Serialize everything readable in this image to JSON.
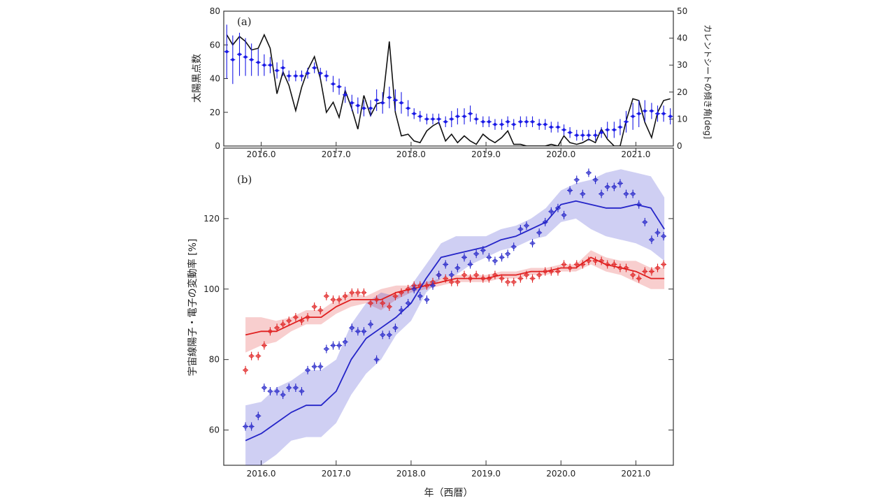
{
  "chart_data": [
    {
      "type": "line",
      "panel_label": "(a)",
      "xlabel": "",
      "ylabel": "太陽黒点数",
      "y2label": "カレントシートの傾き角[deg]",
      "xlim": [
        2015.5,
        2021.5
      ],
      "ylim": [
        0,
        80
      ],
      "y2lim": [
        0,
        50
      ],
      "xticks": [
        "2016.0",
        "2017.0",
        "2018.0",
        "2019.0",
        "2020.0",
        "2021.0"
      ],
      "yticks": [
        "0",
        "20",
        "40",
        "60",
        "80"
      ],
      "y2ticks": [
        "0",
        "10",
        "20",
        "30",
        "40",
        "50"
      ],
      "grid": false,
      "series": [
        {
          "color": "#111111",
          "axis": "left",
          "x": [
            2015.54,
            2015.62,
            2015.71,
            2015.79,
            2015.87,
            2015.96,
            2016.04,
            2016.12,
            2016.21,
            2016.29,
            2016.37,
            2016.46,
            2016.54,
            2016.62,
            2016.71,
            2016.79,
            2016.87,
            2016.96,
            2017.04,
            2017.12,
            2017.21,
            2017.29,
            2017.37,
            2017.46,
            2017.54,
            2017.62,
            2017.71,
            2017.79,
            2017.87,
            2017.96,
            2018.04,
            2018.12,
            2018.21,
            2018.29,
            2018.37,
            2018.46,
            2018.54,
            2018.62,
            2018.71,
            2018.79,
            2018.87,
            2018.96,
            2019.04,
            2019.12,
            2019.21,
            2019.29,
            2019.37,
            2019.46,
            2019.54,
            2019.62,
            2019.71,
            2019.79,
            2019.87,
            2019.96,
            2020.04,
            2020.12,
            2020.21,
            2020.29,
            2020.37,
            2020.46,
            2020.54,
            2020.62,
            2020.71,
            2020.79,
            2020.87,
            2020.96,
            2021.04,
            2021.12,
            2021.21,
            2021.29,
            2021.37,
            2021.46
          ],
          "values": [
            66,
            60,
            65,
            62,
            57,
            58,
            66,
            58,
            31,
            44,
            36,
            21,
            35,
            45,
            53,
            40,
            20,
            26,
            17,
            33,
            22,
            10,
            30,
            18,
            25,
            26,
            62,
            20,
            6,
            7,
            3,
            2,
            9,
            12,
            14,
            3,
            7,
            2,
            6,
            3,
            1,
            7,
            4,
            2,
            5,
            9,
            1,
            1,
            0,
            0,
            0,
            0,
            1,
            0,
            6,
            2,
            1,
            2,
            4,
            2,
            10,
            4,
            0,
            0,
            15,
            28,
            27,
            14,
            5,
            20,
            27,
            28
          ]
        },
        {
          "color": "#1a1ae6",
          "axis": "right",
          "x": [
            2015.54,
            2015.62,
            2015.71,
            2015.79,
            2015.87,
            2015.96,
            2016.04,
            2016.12,
            2016.21,
            2016.29,
            2016.37,
            2016.46,
            2016.54,
            2016.62,
            2016.71,
            2016.79,
            2016.87,
            2016.96,
            2017.04,
            2017.12,
            2017.21,
            2017.29,
            2017.37,
            2017.46,
            2017.54,
            2017.62,
            2017.71,
            2017.79,
            2017.87,
            2017.96,
            2018.04,
            2018.12,
            2018.21,
            2018.29,
            2018.37,
            2018.46,
            2018.54,
            2018.62,
            2018.71,
            2018.79,
            2018.87,
            2018.96,
            2019.04,
            2019.12,
            2019.21,
            2019.29,
            2019.37,
            2019.46,
            2019.54,
            2019.62,
            2019.71,
            2019.79,
            2019.87,
            2019.96,
            2020.04,
            2020.12,
            2020.21,
            2020.29,
            2020.37,
            2020.46,
            2020.54,
            2020.62,
            2020.71,
            2020.79,
            2020.87,
            2020.96,
            2021.04,
            2021.12,
            2021.21,
            2021.29,
            2021.37,
            2021.46
          ],
          "values": [
            35,
            32,
            34,
            33,
            32,
            31,
            30,
            30,
            28,
            29,
            26,
            26,
            26,
            27,
            29,
            27,
            26,
            23,
            22,
            19,
            16,
            15,
            14,
            14,
            17,
            16,
            18,
            17,
            16,
            14,
            12,
            11,
            10,
            10,
            10,
            9,
            10,
            11,
            11,
            12,
            10,
            9,
            9,
            8,
            8,
            9,
            8,
            9,
            9,
            9,
            8,
            8,
            7,
            7,
            6,
            5,
            4,
            4,
            4,
            4,
            5,
            6,
            6,
            7,
            9,
            11,
            12,
            13,
            13,
            12,
            12,
            11
          ],
          "yerr": [
            10,
            9,
            8,
            7,
            6,
            5,
            4,
            3,
            3,
            3,
            2,
            2,
            2,
            2,
            2,
            2,
            2,
            3,
            3,
            3,
            3,
            3,
            3,
            3,
            4,
            4,
            4,
            4,
            4,
            3,
            2,
            2,
            2,
            2,
            2,
            2,
            3,
            3,
            3,
            3,
            2,
            2,
            2,
            2,
            2,
            2,
            2,
            2,
            2,
            2,
            2,
            2,
            2,
            2,
            2,
            2,
            2,
            2,
            2,
            2,
            2,
            3,
            3,
            3,
            4,
            5,
            5,
            4,
            3,
            3,
            3,
            3
          ]
        }
      ]
    },
    {
      "type": "line",
      "panel_label": "(b)",
      "xlabel": "年（西暦）",
      "ylabel": "宇宙線陽子・電子の変動率 [%]",
      "xlim": [
        2015.5,
        2021.5
      ],
      "ylim": [
        50,
        140
      ],
      "xticks": [
        "2016.0",
        "2017.0",
        "2018.0",
        "2019.0",
        "2020.0",
        "2021.0"
      ],
      "yticks": [
        "60",
        "80",
        "100",
        "120"
      ],
      "grid": false,
      "series": [
        {
          "color": "#e02020",
          "points_x": [
            2015.79,
            2015.87,
            2015.96,
            2016.04,
            2016.12,
            2016.21,
            2016.29,
            2016.37,
            2016.46,
            2016.54,
            2016.62,
            2016.71,
            2016.79,
            2016.87,
            2016.96,
            2017.04,
            2017.12,
            2017.21,
            2017.29,
            2017.37,
            2017.46,
            2017.54,
            2017.62,
            2017.71,
            2017.79,
            2017.87,
            2017.96,
            2018.04,
            2018.12,
            2018.21,
            2018.29,
            2018.37,
            2018.46,
            2018.54,
            2018.62,
            2018.71,
            2018.79,
            2018.87,
            2018.96,
            2019.04,
            2019.12,
            2019.21,
            2019.29,
            2019.37,
            2019.46,
            2019.54,
            2019.62,
            2019.71,
            2019.79,
            2019.87,
            2019.96,
            2020.04,
            2020.12,
            2020.21,
            2020.29,
            2020.37,
            2020.46,
            2020.54,
            2020.62,
            2020.71,
            2020.79,
            2020.87,
            2020.96,
            2021.04,
            2021.12,
            2021.21,
            2021.29,
            2021.37
          ],
          "points_y": [
            77,
            81,
            81,
            84,
            88,
            89,
            90,
            91,
            92,
            91,
            92,
            95,
            94,
            98,
            97,
            97,
            98,
            99,
            99,
            99,
            96,
            97,
            96,
            95,
            98,
            99,
            100,
            101,
            101,
            101,
            102,
            104,
            103,
            102,
            102,
            104,
            103,
            104,
            103,
            103,
            104,
            103,
            102,
            102,
            103,
            104,
            103,
            104,
            105,
            105,
            105,
            107,
            106,
            107,
            107,
            108,
            108,
            108,
            107,
            107,
            106,
            106,
            104,
            103,
            105,
            105,
            106,
            107
          ],
          "fit_x": [
            2015.79,
            2016.0,
            2016.2,
            2016.4,
            2016.6,
            2016.8,
            2017.0,
            2017.2,
            2017.4,
            2017.6,
            2017.8,
            2018.0,
            2018.2,
            2018.4,
            2018.6,
            2018.8,
            2019.0,
            2019.2,
            2019.4,
            2019.6,
            2019.8,
            2020.0,
            2020.2,
            2020.4,
            2020.6,
            2020.8,
            2021.0,
            2021.2,
            2021.38
          ],
          "fit_y": [
            87,
            88,
            88,
            90,
            92,
            92,
            95,
            97,
            97,
            97,
            99,
            100,
            101,
            102,
            103,
            103,
            103,
            104,
            104,
            105,
            105,
            106,
            106,
            109,
            107,
            106,
            105,
            103,
            103
          ],
          "band_lo": [
            82,
            84,
            85,
            88,
            90,
            90,
            93,
            95,
            96,
            94,
            97,
            99,
            100,
            101,
            102,
            102,
            102,
            103,
            103,
            104,
            104,
            105,
            105,
            107,
            105,
            104,
            102,
            100,
            100
          ],
          "band_hi": [
            92,
            92,
            91,
            92,
            94,
            94,
            97,
            99,
            98,
            100,
            101,
            101,
            102,
            103,
            104,
            104,
            104,
            105,
            105,
            106,
            106,
            107,
            107,
            111,
            109,
            108,
            108,
            106,
            106
          ]
        },
        {
          "color": "#2424c8",
          "points_x": [
            2015.79,
            2015.87,
            2015.96,
            2016.04,
            2016.12,
            2016.21,
            2016.29,
            2016.37,
            2016.46,
            2016.54,
            2016.62,
            2016.71,
            2016.79,
            2016.87,
            2016.96,
            2017.04,
            2017.12,
            2017.21,
            2017.29,
            2017.37,
            2017.46,
            2017.54,
            2017.62,
            2017.71,
            2017.79,
            2017.87,
            2017.96,
            2018.04,
            2018.12,
            2018.21,
            2018.29,
            2018.37,
            2018.46,
            2018.54,
            2018.62,
            2018.71,
            2018.79,
            2018.87,
            2018.96,
            2019.04,
            2019.12,
            2019.21,
            2019.29,
            2019.37,
            2019.46,
            2019.54,
            2019.62,
            2019.71,
            2019.79,
            2019.87,
            2019.96,
            2020.04,
            2020.12,
            2020.21,
            2020.29,
            2020.37,
            2020.46,
            2020.54,
            2020.62,
            2020.71,
            2020.79,
            2020.87,
            2020.96,
            2021.04,
            2021.12,
            2021.21,
            2021.29,
            2021.37
          ],
          "points_y": [
            61,
            61,
            64,
            72,
            71,
            71,
            70,
            72,
            72,
            71,
            77,
            78,
            78,
            83,
            84,
            84,
            85,
            89,
            88,
            88,
            90,
            80,
            87,
            87,
            89,
            94,
            96,
            100,
            98,
            97,
            101,
            104,
            107,
            104,
            106,
            109,
            107,
            110,
            111,
            109,
            108,
            109,
            110,
            112,
            117,
            118,
            113,
            116,
            119,
            122,
            123,
            121,
            128,
            131,
            127,
            133,
            131,
            127,
            129,
            129,
            130,
            127,
            127,
            124,
            119,
            114,
            116,
            115
          ],
          "fit_x": [
            2015.79,
            2016.0,
            2016.2,
            2016.4,
            2016.6,
            2016.8,
            2017.0,
            2017.2,
            2017.4,
            2017.6,
            2017.8,
            2018.0,
            2018.2,
            2018.4,
            2018.6,
            2018.8,
            2019.0,
            2019.2,
            2019.4,
            2019.6,
            2019.8,
            2020.0,
            2020.2,
            2020.4,
            2020.6,
            2020.8,
            2021.0,
            2021.2,
            2021.38
          ],
          "fit_y": [
            57,
            59,
            62,
            65,
            67,
            67,
            71,
            80,
            86,
            89,
            92,
            96,
            103,
            109,
            110,
            111,
            112,
            114,
            115,
            117,
            119,
            124,
            125,
            124,
            123,
            123,
            124,
            123,
            117
          ],
          "band_lo": [
            47,
            50,
            53,
            57,
            58,
            58,
            62,
            70,
            76,
            80,
            87,
            91,
            99,
            103,
            104,
            107,
            109,
            111,
            112,
            114,
            115,
            119,
            120,
            117,
            115,
            114,
            113,
            111,
            108
          ],
          "band_hi": [
            67,
            68,
            72,
            74,
            77,
            77,
            80,
            90,
            96,
            99,
            98,
            101,
            107,
            113,
            115,
            115,
            115,
            117,
            118,
            120,
            123,
            128,
            130,
            131,
            133,
            134,
            133,
            132,
            126
          ]
        }
      ]
    }
  ]
}
